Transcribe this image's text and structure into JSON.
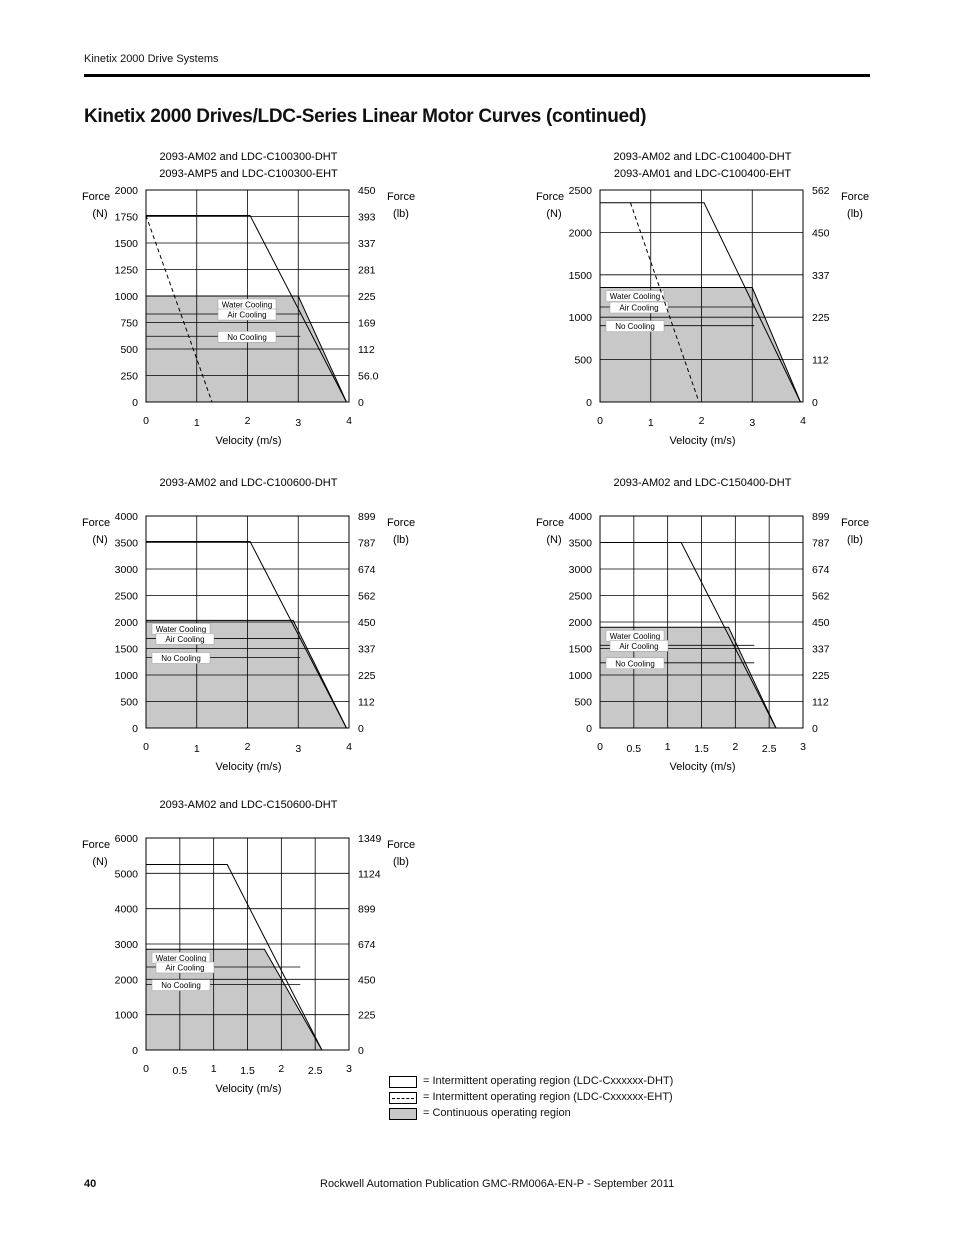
{
  "header": {
    "section": "Kinetix 2000 Drive Systems"
  },
  "page_title": "Kinetix 2000 Drives/LDC-Series Linear Motor Curves (continued)",
  "colors": {
    "continuous_fill": "#c8c8c8",
    "line": "#000000"
  },
  "chart_data": [
    {
      "type": "area",
      "title_lines": [
        "2093-AM02 and LDC-C100300-DHT",
        "2093-AMP5 and LDC-C100300-EHT"
      ],
      "xlabel": "Velocity (m/s)",
      "ylabel_left": [
        "Force",
        "(N)"
      ],
      "ylabel_right": [
        "Force",
        "(lb)"
      ],
      "xlim": [
        0,
        4
      ],
      "ylim": [
        0,
        2000
      ],
      "x_ticks": [
        "0",
        "1",
        "2",
        "3",
        "4"
      ],
      "y_ticks": [
        "0",
        "250",
        "500",
        "750",
        "1000",
        "1250",
        "1500",
        "1750",
        "2000"
      ],
      "y_ticks_right": [
        "0",
        "56.0",
        "112",
        "169",
        "225",
        "281",
        "337",
        "393",
        "450"
      ],
      "intermittent_dht": [
        [
          0,
          1760
        ],
        [
          2.05,
          1760
        ],
        [
          3.95,
          0
        ]
      ],
      "intermittent_eht": [
        [
          0,
          1760
        ],
        [
          1.3,
          0
        ]
      ],
      "continuous": [
        [
          0,
          1000
        ],
        [
          3.0,
          1000
        ],
        [
          3.95,
          0
        ]
      ],
      "cooling_levels": [
        {
          "name": "Water Cooling",
          "y": 1000
        },
        {
          "name": "Air Cooling",
          "y": 830
        },
        {
          "name": "No Cooling",
          "y": 620
        }
      ]
    },
    {
      "type": "area",
      "title_lines": [
        "2093-AM02 and LDC-C100400-DHT",
        "2093-AM01 and LDC-C100400-EHT"
      ],
      "xlabel": "Velocity (m/s)",
      "ylabel_left": [
        "Force",
        "(N)"
      ],
      "ylabel_right": [
        "Force",
        "(lb)"
      ],
      "xlim": [
        0,
        4
      ],
      "ylim": [
        0,
        2500
      ],
      "x_ticks": [
        "0",
        "1",
        "2",
        "3",
        "4"
      ],
      "y_ticks": [
        "0",
        "500",
        "1000",
        "1500",
        "2000",
        "2500"
      ],
      "y_ticks_right": [
        "0",
        "112",
        "225",
        "337",
        "450",
        "562"
      ],
      "intermittent_dht": [
        [
          0,
          2350
        ],
        [
          2.05,
          2350
        ],
        [
          3.95,
          0
        ]
      ],
      "intermittent_eht": [
        [
          0.6,
          2350
        ],
        [
          1.95,
          0
        ]
      ],
      "continuous": [
        [
          0,
          1350
        ],
        [
          3.0,
          1350
        ],
        [
          3.95,
          0
        ]
      ],
      "cooling_levels": [
        {
          "name": "Water Cooling",
          "y": 1350
        },
        {
          "name": "Air Cooling",
          "y": 1120
        },
        {
          "name": "No Cooling",
          "y": 900
        }
      ]
    },
    {
      "type": "area",
      "title_lines": [
        "2093-AM02 and LDC-C100600-DHT"
      ],
      "xlabel": "Velocity (m/s)",
      "ylabel_left": [
        "Force",
        "(N)"
      ],
      "ylabel_right": [
        "Force",
        "(lb)"
      ],
      "xlim": [
        0,
        4
      ],
      "ylim": [
        0,
        4000
      ],
      "x_ticks": [
        "0",
        "1",
        "2",
        "3",
        "4"
      ],
      "y_ticks": [
        "0",
        "500",
        "1000",
        "1500",
        "2000",
        "2500",
        "3000",
        "3500",
        "4000"
      ],
      "y_ticks_right": [
        "0",
        "112",
        "225",
        "337",
        "450",
        "562",
        "674",
        "787",
        "899"
      ],
      "intermittent_dht": [
        [
          0,
          3520
        ],
        [
          2.05,
          3520
        ],
        [
          3.95,
          0
        ]
      ],
      "continuous": [
        [
          0,
          2030
        ],
        [
          2.9,
          2030
        ],
        [
          3.95,
          0
        ]
      ],
      "cooling_levels": [
        {
          "name": "Water Cooling",
          "y": 2030
        },
        {
          "name": "Air Cooling",
          "y": 1690
        },
        {
          "name": "No Cooling",
          "y": 1330
        }
      ]
    },
    {
      "type": "area",
      "title_lines": [
        "2093-AM02 and LDC-C150400-DHT"
      ],
      "xlabel": "Velocity (m/s)",
      "ylabel_left": [
        "Force",
        "(N)"
      ],
      "ylabel_right": [
        "Force",
        "(lb)"
      ],
      "xlim": [
        0,
        3
      ],
      "ylim": [
        0,
        4000
      ],
      "x_ticks": [
        "0",
        "0.5",
        "1",
        "1.5",
        "2",
        "2.5",
        "3"
      ],
      "y_ticks": [
        "0",
        "500",
        "1000",
        "1500",
        "2000",
        "2500",
        "3000",
        "3500",
        "4000"
      ],
      "y_ticks_right": [
        "0",
        "112",
        "225",
        "337",
        "450",
        "562",
        "674",
        "787",
        "899"
      ],
      "intermittent_dht": [
        [
          0,
          3500
        ],
        [
          1.2,
          3500
        ],
        [
          2.6,
          0
        ]
      ],
      "continuous": [
        [
          0,
          1900
        ],
        [
          1.9,
          1900
        ],
        [
          2.6,
          0
        ]
      ],
      "cooling_levels": [
        {
          "name": "Water Cooling",
          "y": 1900
        },
        {
          "name": "Air Cooling",
          "y": 1560
        },
        {
          "name": "No Cooling",
          "y": 1230
        }
      ]
    },
    {
      "type": "area",
      "title_lines": [
        "2093-AM02 and LDC-C150600-DHT"
      ],
      "xlabel": "Velocity (m/s)",
      "ylabel_left": [
        "Force",
        "(N)"
      ],
      "ylabel_right": [
        "Force",
        "(lb)"
      ],
      "xlim": [
        0,
        3
      ],
      "ylim": [
        0,
        6000
      ],
      "x_ticks": [
        "0",
        "0.5",
        "1",
        "1.5",
        "2",
        "2.5",
        "3"
      ],
      "y_ticks": [
        "0",
        "1000",
        "2000",
        "3000",
        "4000",
        "5000",
        "6000"
      ],
      "y_ticks_right": [
        "0",
        "225",
        "450",
        "674",
        "899",
        "1124",
        "1349"
      ],
      "intermittent_dht": [
        [
          0,
          5250
        ],
        [
          1.2,
          5250
        ],
        [
          2.6,
          0
        ]
      ],
      "continuous": [
        [
          0,
          2850
        ],
        [
          1.75,
          2850
        ],
        [
          2.6,
          0
        ]
      ],
      "cooling_levels": [
        {
          "name": "Water Cooling",
          "y": 2850
        },
        {
          "name": "Air Cooling",
          "y": 2350
        },
        {
          "name": "No Cooling",
          "y": 1850
        }
      ]
    }
  ],
  "legend": [
    {
      "style": "solid",
      "text": "= Intermittent operating region (LDC-Cxxxxxx-DHT)"
    },
    {
      "style": "dashed",
      "text": "= Intermittent operating region (LDC-Cxxxxxx-EHT)"
    },
    {
      "style": "gray",
      "text": "= Continuous operating region"
    }
  ],
  "footer": {
    "page_number": "40",
    "publication": "Rockwell Automation Publication GMC-RM006A-EN-P - September 2011"
  }
}
